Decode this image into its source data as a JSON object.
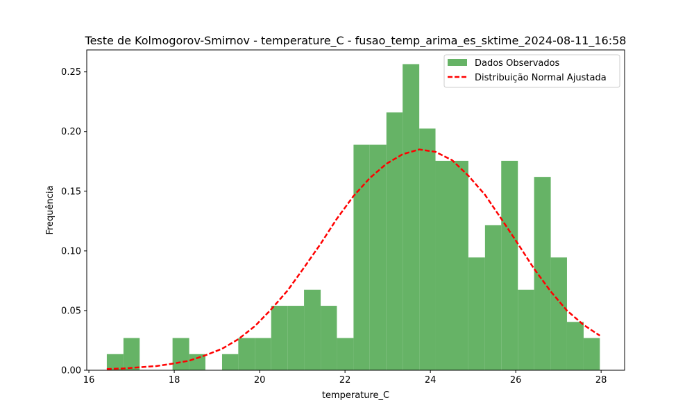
{
  "chart_data": {
    "type": "bar",
    "title": "Teste de Kolmogorov-Smirnov - temperature_C - fusao_temp_arima_es_sktime_2024-08-11_16:58",
    "xlabel": "temperature_C",
    "ylabel": "Frequência",
    "xlim": [
      15.95,
      28.55
    ],
    "ylim": [
      0.0,
      0.2684
    ],
    "x_ticks": [
      "16",
      "18",
      "20",
      "22",
      "24",
      "26",
      "28"
    ],
    "y_ticks": [
      "0.00",
      "0.05",
      "0.10",
      "0.15",
      "0.20",
      "0.25"
    ],
    "bin_edges": [
      16.42,
      16.81,
      17.19,
      17.58,
      17.96,
      18.35,
      18.73,
      19.12,
      19.5,
      19.89,
      20.27,
      20.66,
      21.04,
      21.43,
      21.81,
      22.2,
      22.58,
      22.97,
      23.35,
      23.74,
      24.12,
      24.51,
      24.89,
      25.28,
      25.66,
      26.05,
      26.43,
      26.82,
      27.2,
      27.59,
      27.97
    ],
    "series": [
      {
        "name": "Dados Observados",
        "color": "#66b366",
        "values": [
          0.0135,
          0.027,
          0,
          0,
          0.027,
          0.0135,
          0,
          0.0135,
          0.027,
          0.027,
          0.054,
          0.054,
          0.0675,
          0.054,
          0.027,
          0.189,
          0.189,
          0.216,
          0.2565,
          0.2025,
          0.1755,
          0.1755,
          0.0945,
          0.1215,
          0.1755,
          0.0675,
          0.162,
          0.0945,
          0.0405,
          0.027
        ]
      },
      {
        "name": "Distribuição Normal Ajustada",
        "color": "#ff0000",
        "type": "line",
        "style": "dashed",
        "x": [
          16.42,
          16.81,
          17.19,
          17.58,
          17.96,
          18.35,
          18.73,
          19.12,
          19.5,
          19.89,
          20.27,
          20.66,
          21.04,
          21.43,
          21.81,
          22.2,
          22.58,
          22.97,
          23.35,
          23.74,
          24.12,
          24.51,
          24.89,
          25.28,
          25.66,
          26.05,
          26.43,
          26.82,
          27.2,
          27.59,
          27.97
        ],
        "values": [
          0.001,
          0.0015,
          0.0025,
          0.0035,
          0.0055,
          0.008,
          0.0125,
          0.018,
          0.026,
          0.037,
          0.051,
          0.067,
          0.086,
          0.106,
          0.127,
          0.146,
          0.161,
          0.173,
          0.181,
          0.185,
          0.183,
          0.176,
          0.163,
          0.147,
          0.127,
          0.106,
          0.085,
          0.066,
          0.05,
          0.038,
          0.029
        ]
      }
    ],
    "legend_position": "top-right",
    "grid": false
  }
}
